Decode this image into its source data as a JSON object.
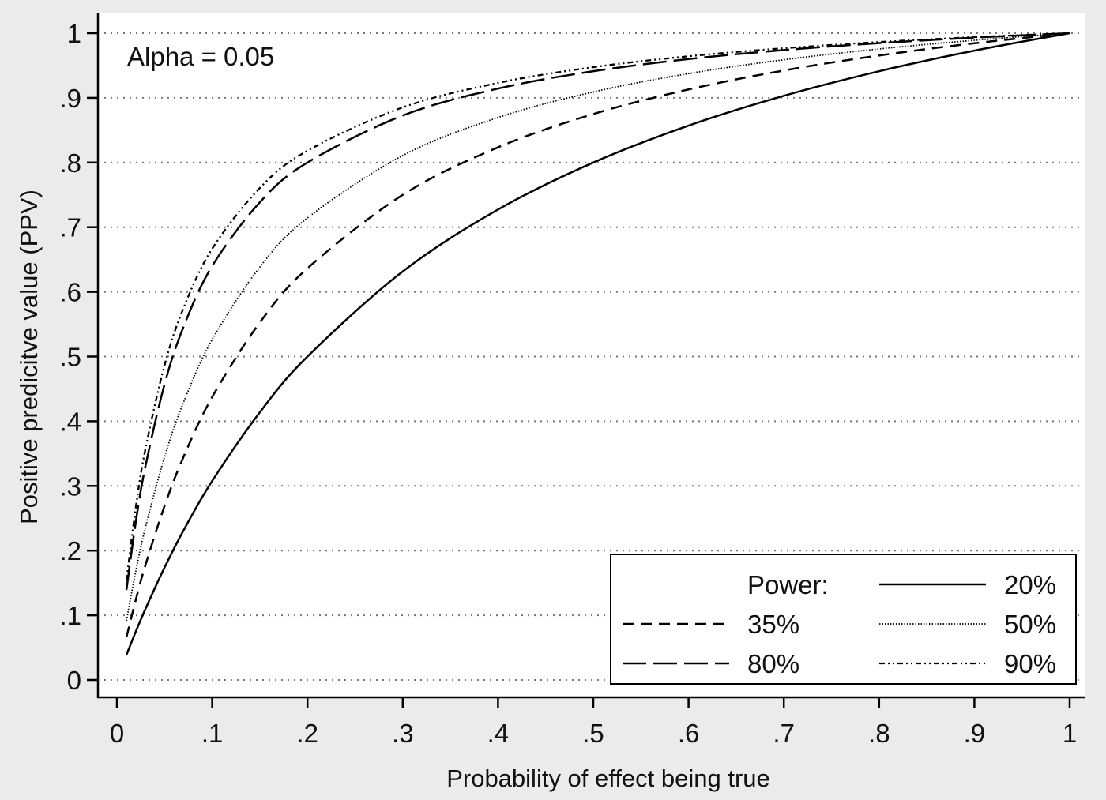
{
  "chart_data": {
    "type": "line",
    "title": "",
    "annotation": "Alpha = 0.05",
    "xlabel": "Probability of effect being true",
    "ylabel": "Positive predicitve value (PPV)",
    "xlim": [
      0,
      1
    ],
    "ylim": [
      0,
      1
    ],
    "grid": "horizontal-dotted",
    "xticks": [
      "0",
      ".1",
      ".2",
      ".3",
      ".4",
      ".5",
      ".6",
      ".7",
      ".8",
      ".9",
      "1"
    ],
    "xtick_values": [
      0,
      0.1,
      0.2,
      0.3,
      0.4,
      0.5,
      0.6,
      0.7,
      0.8,
      0.9,
      1
    ],
    "yticks": [
      "0",
      ".1",
      ".2",
      ".3",
      ".4",
      ".5",
      ".6",
      ".7",
      ".8",
      ".9",
      "1"
    ],
    "ytick_values": [
      0,
      0.1,
      0.2,
      0.3,
      0.4,
      0.5,
      0.6,
      0.7,
      0.8,
      0.9,
      1
    ],
    "legend": {
      "title": "Power:",
      "placement": "bottom-right"
    },
    "x": [
      0.01,
      0.02,
      0.03,
      0.05,
      0.07,
      0.1,
      0.15,
      0.2,
      0.3,
      0.4,
      0.5,
      0.6,
      0.7,
      0.8,
      0.9,
      1.0
    ],
    "series": [
      {
        "name": "20%",
        "style": "solid",
        "values": [
          0.0388,
          0.0755,
          0.1101,
          0.1739,
          0.2314,
          0.3077,
          0.4138,
          0.5,
          0.6316,
          0.7273,
          0.8,
          0.8571,
          0.9032,
          0.9412,
          0.973,
          1
        ]
      },
      {
        "name": "35%",
        "style": "dash",
        "values": [
          0.066,
          0.125,
          0.178,
          0.2692,
          0.3451,
          0.4375,
          0.5526,
          0.6364,
          0.75,
          0.8235,
          0.875,
          0.913,
          0.9423,
          0.9655,
          0.9844,
          1
        ]
      },
      {
        "name": "50%",
        "style": "dot",
        "values": [
          0.0917,
          0.1695,
          0.2362,
          0.3448,
          0.4294,
          0.5263,
          0.6383,
          0.7143,
          0.8108,
          0.8696,
          0.9091,
          0.9375,
          0.9589,
          0.9756,
          0.989,
          1
        ]
      },
      {
        "name": "80%",
        "style": "longdash",
        "values": [
          0.1391,
          0.2462,
          0.331,
          0.4571,
          0.5463,
          0.64,
          0.7385,
          0.8,
          0.8727,
          0.9143,
          0.9412,
          0.96,
          0.9739,
          0.9846,
          0.9931,
          1
        ]
      },
      {
        "name": "90%",
        "style": "dashdot",
        "values": [
          0.1538,
          0.2687,
          0.3576,
          0.4865,
          0.5753,
          0.6667,
          0.7606,
          0.8182,
          0.8852,
          0.9231,
          0.9474,
          0.9643,
          0.9767,
          0.9863,
          0.9939,
          1
        ]
      }
    ]
  }
}
